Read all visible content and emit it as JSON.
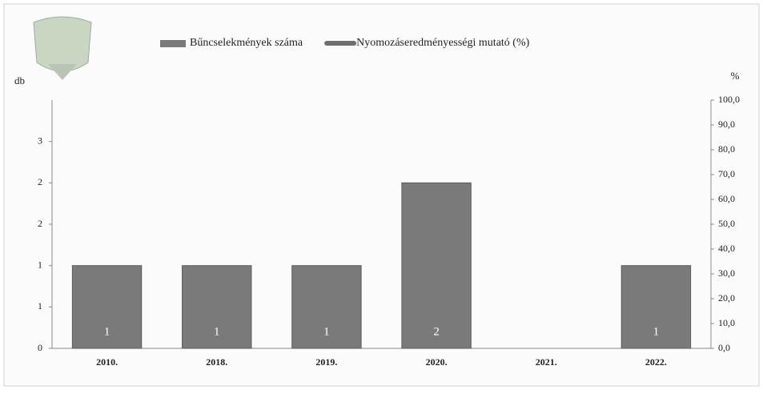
{
  "chart_data": {
    "type": "bar",
    "categories": [
      "2010.",
      "2018.",
      "2019.",
      "2020.",
      "2021.",
      "2022."
    ],
    "series": [
      {
        "name": "Bűncselekmények száma",
        "color": "#7a7a7a",
        "values": [
          1,
          1,
          1,
          2,
          null,
          1
        ]
      },
      {
        "name": "Nyomozáseredményességi mutató (%)",
        "color": "#6e6e6e",
        "values": [
          null,
          null,
          null,
          null,
          null,
          null
        ],
        "axis": "y2",
        "type": "line"
      }
    ],
    "ylabel": "db",
    "y2label": "%",
    "ylim": [
      0,
      3
    ],
    "yticks": [
      0,
      {
        "value": 0.5,
        "label": "1"
      },
      1,
      {
        "value": 1.5,
        "label": "2"
      },
      2,
      {
        "value": 2.5,
        "label": "3"
      }
    ],
    "y2lim": [
      0,
      100
    ],
    "y2ticks": [
      {
        "value": 0,
        "label": "0,0"
      },
      {
        "value": 10,
        "label": "10,0"
      },
      {
        "value": 20,
        "label": "20,0"
      },
      {
        "value": 30,
        "label": "30,0"
      },
      {
        "value": 40,
        "label": "40,0"
      },
      {
        "value": 50,
        "label": "50,0"
      },
      {
        "value": 60,
        "label": "60,0"
      },
      {
        "value": 70,
        "label": "70,0"
      },
      {
        "value": 80,
        "label": "80,0"
      },
      {
        "value": 90,
        "label": "90,0"
      },
      {
        "value": 100,
        "label": "100,0"
      }
    ],
    "legend": "top",
    "data_labels": true
  }
}
